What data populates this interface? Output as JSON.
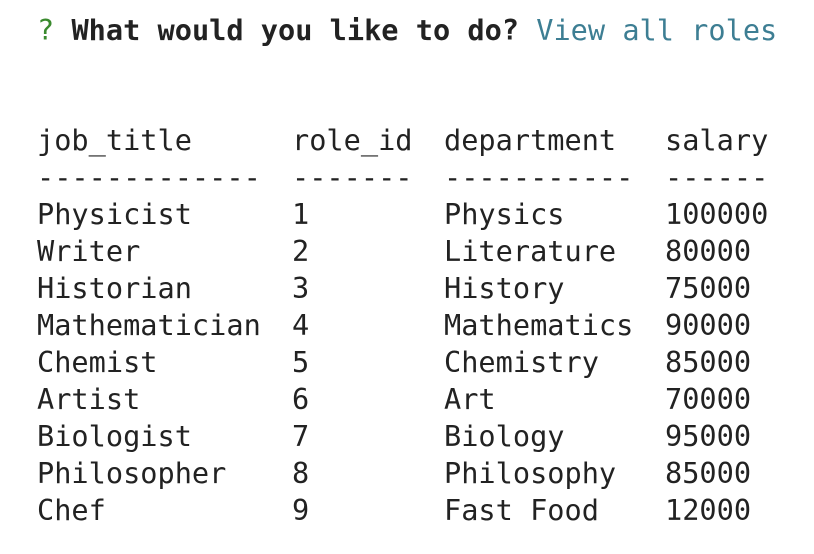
{
  "prompt": {
    "mark": "?",
    "question": "What would you like to do?",
    "answer": "View all roles"
  },
  "table": {
    "headers": [
      "job_title",
      "role_id",
      "department",
      "salary"
    ],
    "separators": [
      "-------------",
      "-------",
      "-----------",
      "------"
    ],
    "rows": [
      [
        "Physicist",
        "1",
        "Physics",
        "100000"
      ],
      [
        "Writer",
        "2",
        "Literature",
        "80000"
      ],
      [
        "Historian",
        "3",
        "History",
        "75000"
      ],
      [
        "Mathematician",
        "4",
        "Mathematics",
        "90000"
      ],
      [
        "Chemist",
        "5",
        "Chemistry",
        "85000"
      ],
      [
        "Artist",
        "6",
        "Art",
        "70000"
      ],
      [
        "Biologist",
        "7",
        "Biology",
        "95000"
      ],
      [
        "Philosopher",
        "8",
        "Philosophy",
        "85000"
      ],
      [
        "Chef",
        "9",
        "Fast Food",
        "12000"
      ]
    ]
  },
  "colors": {
    "prompt_mark": "#3a8a2e",
    "answer": "#3d7e93",
    "text": "#222222",
    "background": "#ffffff"
  }
}
